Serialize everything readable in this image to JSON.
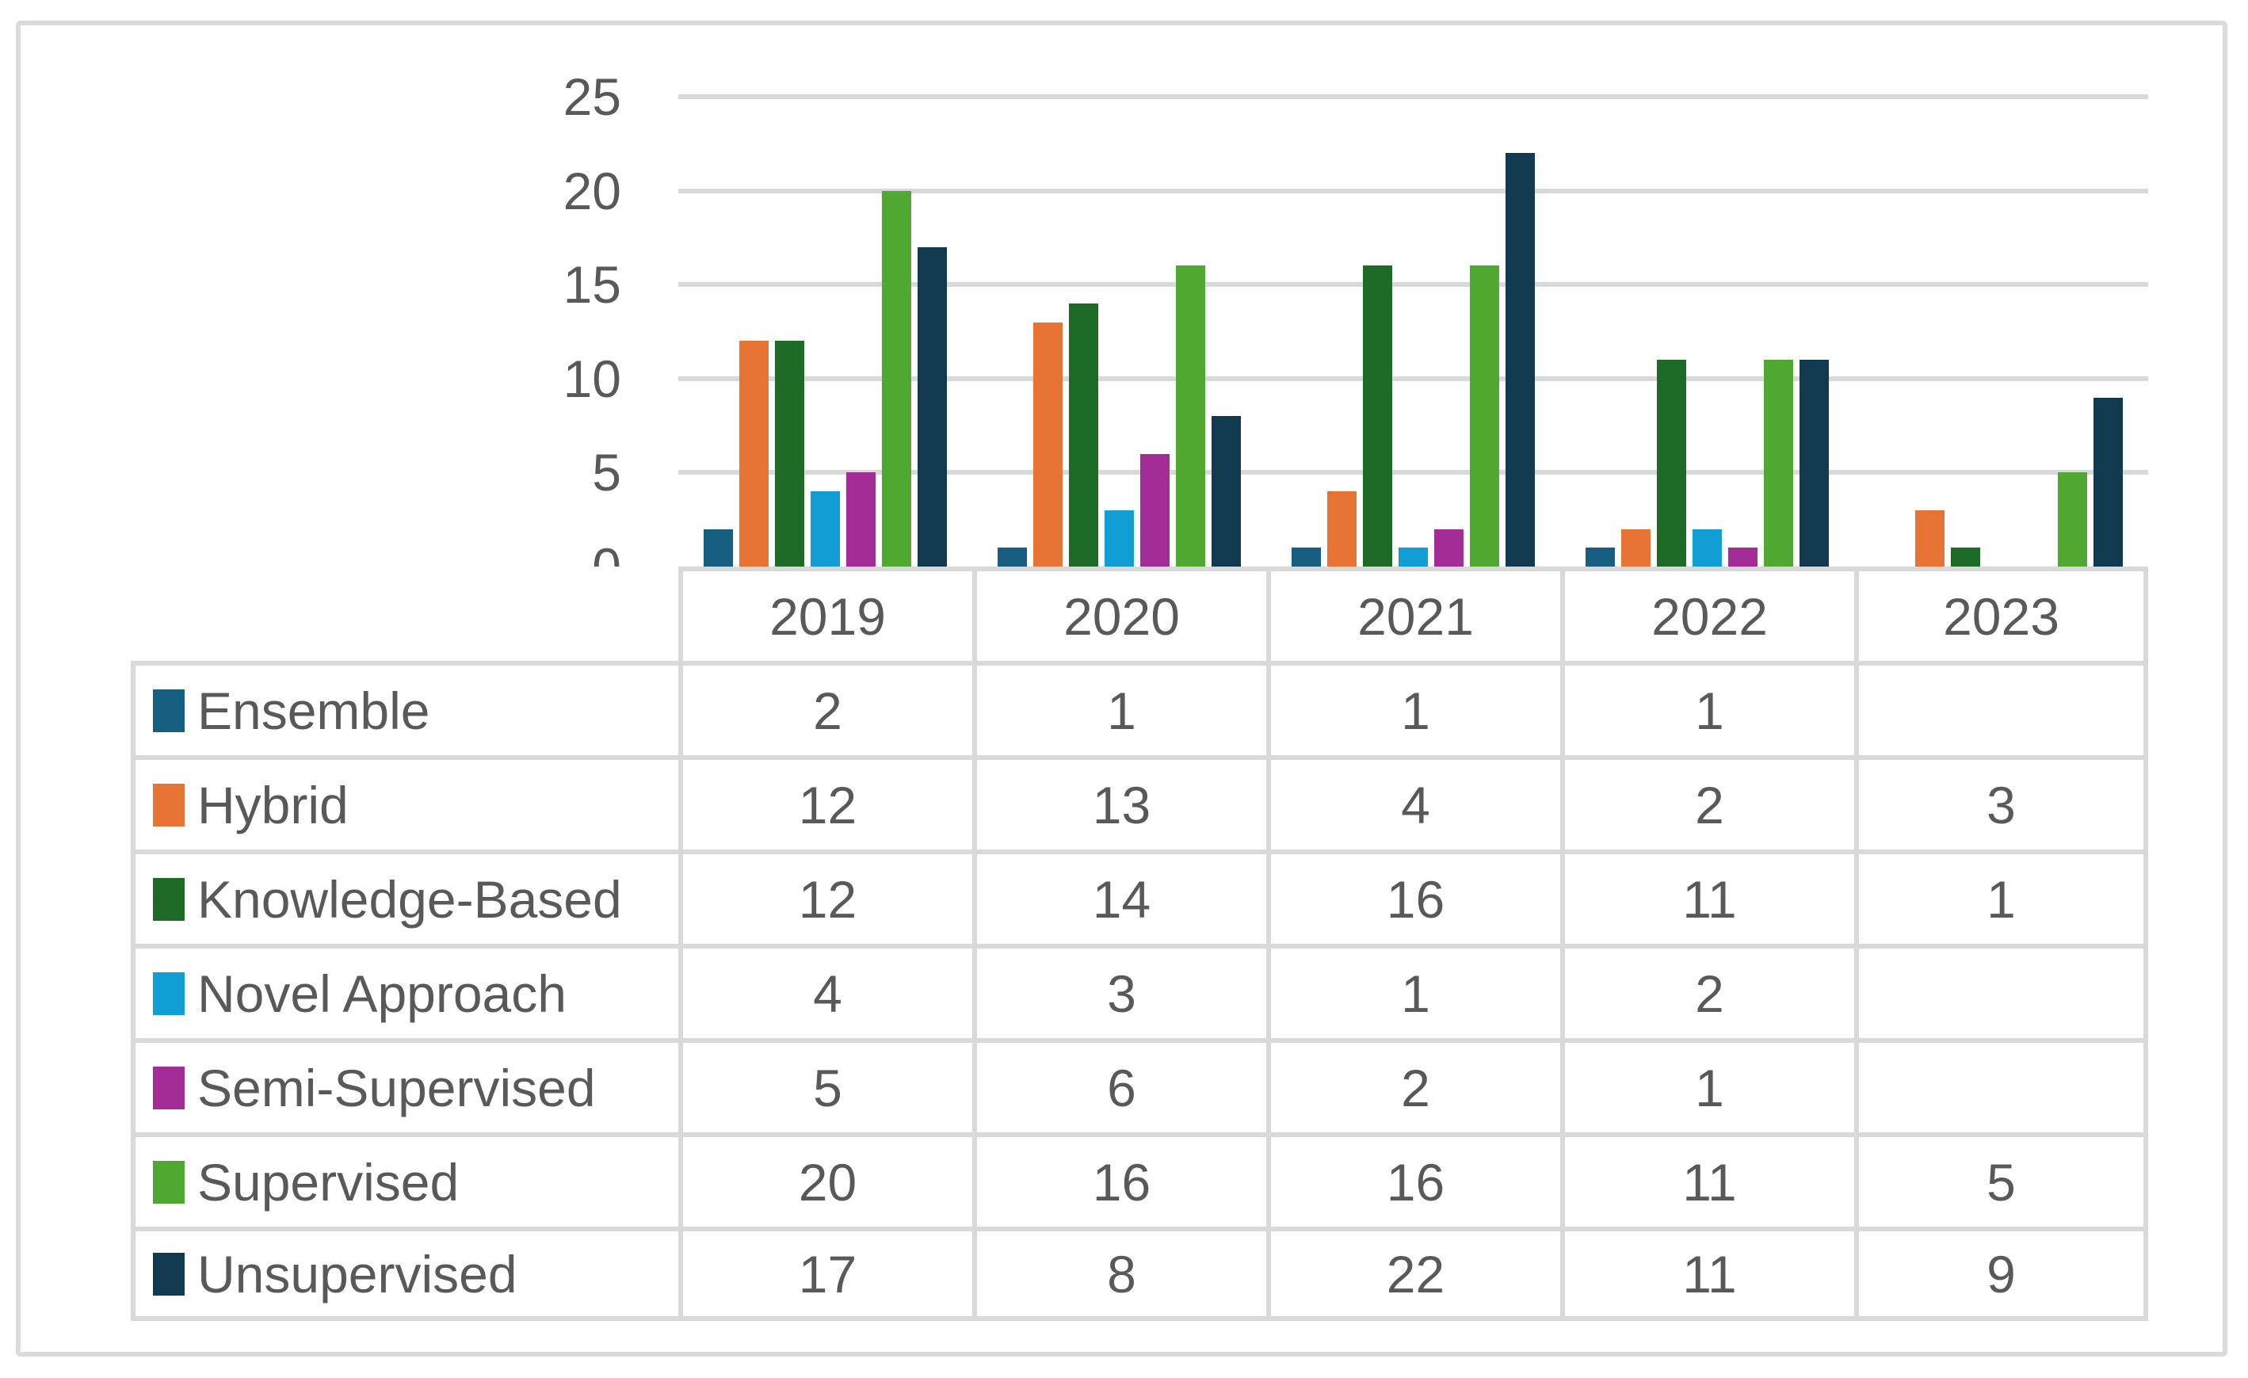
{
  "chart_data": {
    "type": "bar",
    "title": "",
    "xlabel": "",
    "ylabel": "",
    "categories": [
      "2019",
      "2020",
      "2021",
      "2022",
      "2023"
    ],
    "series": [
      {
        "name": "Ensemble",
        "color": "#175F80",
        "values": [
          2,
          1,
          1,
          1,
          null
        ]
      },
      {
        "name": "Hybrid",
        "color": "#E77334",
        "values": [
          12,
          13,
          4,
          2,
          3
        ]
      },
      {
        "name": "Knowledge-Based",
        "color": "#1D6B26",
        "values": [
          12,
          14,
          16,
          11,
          1
        ]
      },
      {
        "name": "Novel Approach",
        "color": "#119ED5",
        "values": [
          4,
          3,
          1,
          2,
          null
        ]
      },
      {
        "name": "Semi-Supervised",
        "color": "#A32C97",
        "values": [
          5,
          6,
          2,
          1,
          null
        ]
      },
      {
        "name": "Supervised",
        "color": "#4FA82F",
        "values": [
          20,
          16,
          16,
          11,
          5
        ]
      },
      {
        "name": "Unsupervised",
        "color": "#113A50",
        "values": [
          17,
          8,
          22,
          11,
          9
        ]
      }
    ],
    "y_axis": {
      "min": 0,
      "max": 25,
      "ticks": [
        0,
        5,
        10,
        15,
        20,
        25
      ]
    },
    "grid": true,
    "legend_position": "data-table-left-column",
    "colors": {
      "gridline": "#D9D9D9",
      "table_border": "#D9D9D9",
      "axis_text": "#595959",
      "frame_border": "#DBDBDB",
      "background": "#FFFFFF"
    }
  }
}
